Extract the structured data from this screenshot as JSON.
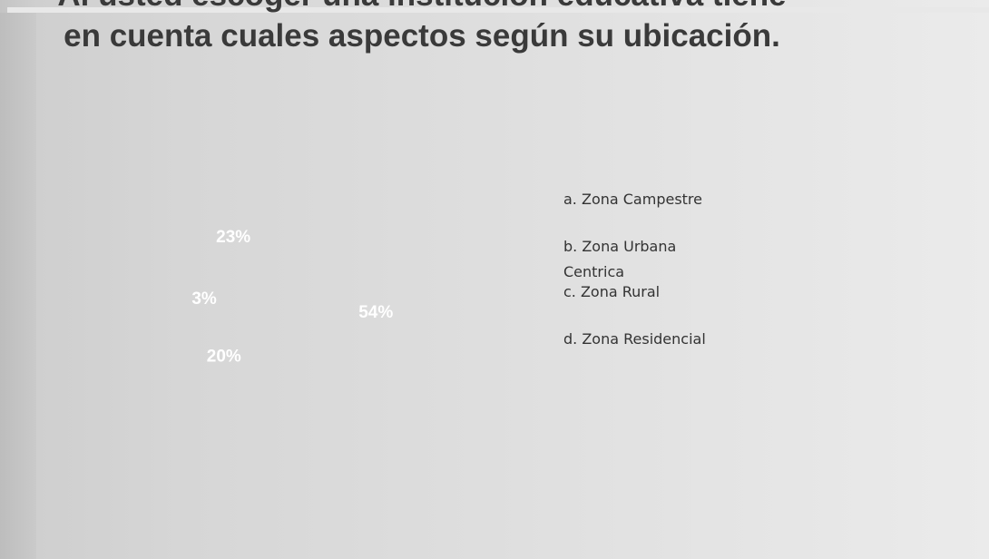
{
  "chart_data": {
    "type": "pie",
    "title": "Al usted escoger una institución educativa tiene en cuenta cuales aspectos según su ubicación.",
    "categories": [
      "a. Zona Campestre",
      "b. Zona Urbana Centrica",
      "c. Zona Rural",
      "d. Zona Residencial"
    ],
    "values": [
      54,
      20,
      3,
      23
    ],
    "value_labels": [
      "54%",
      "20%",
      "3%",
      "23%"
    ]
  }
}
